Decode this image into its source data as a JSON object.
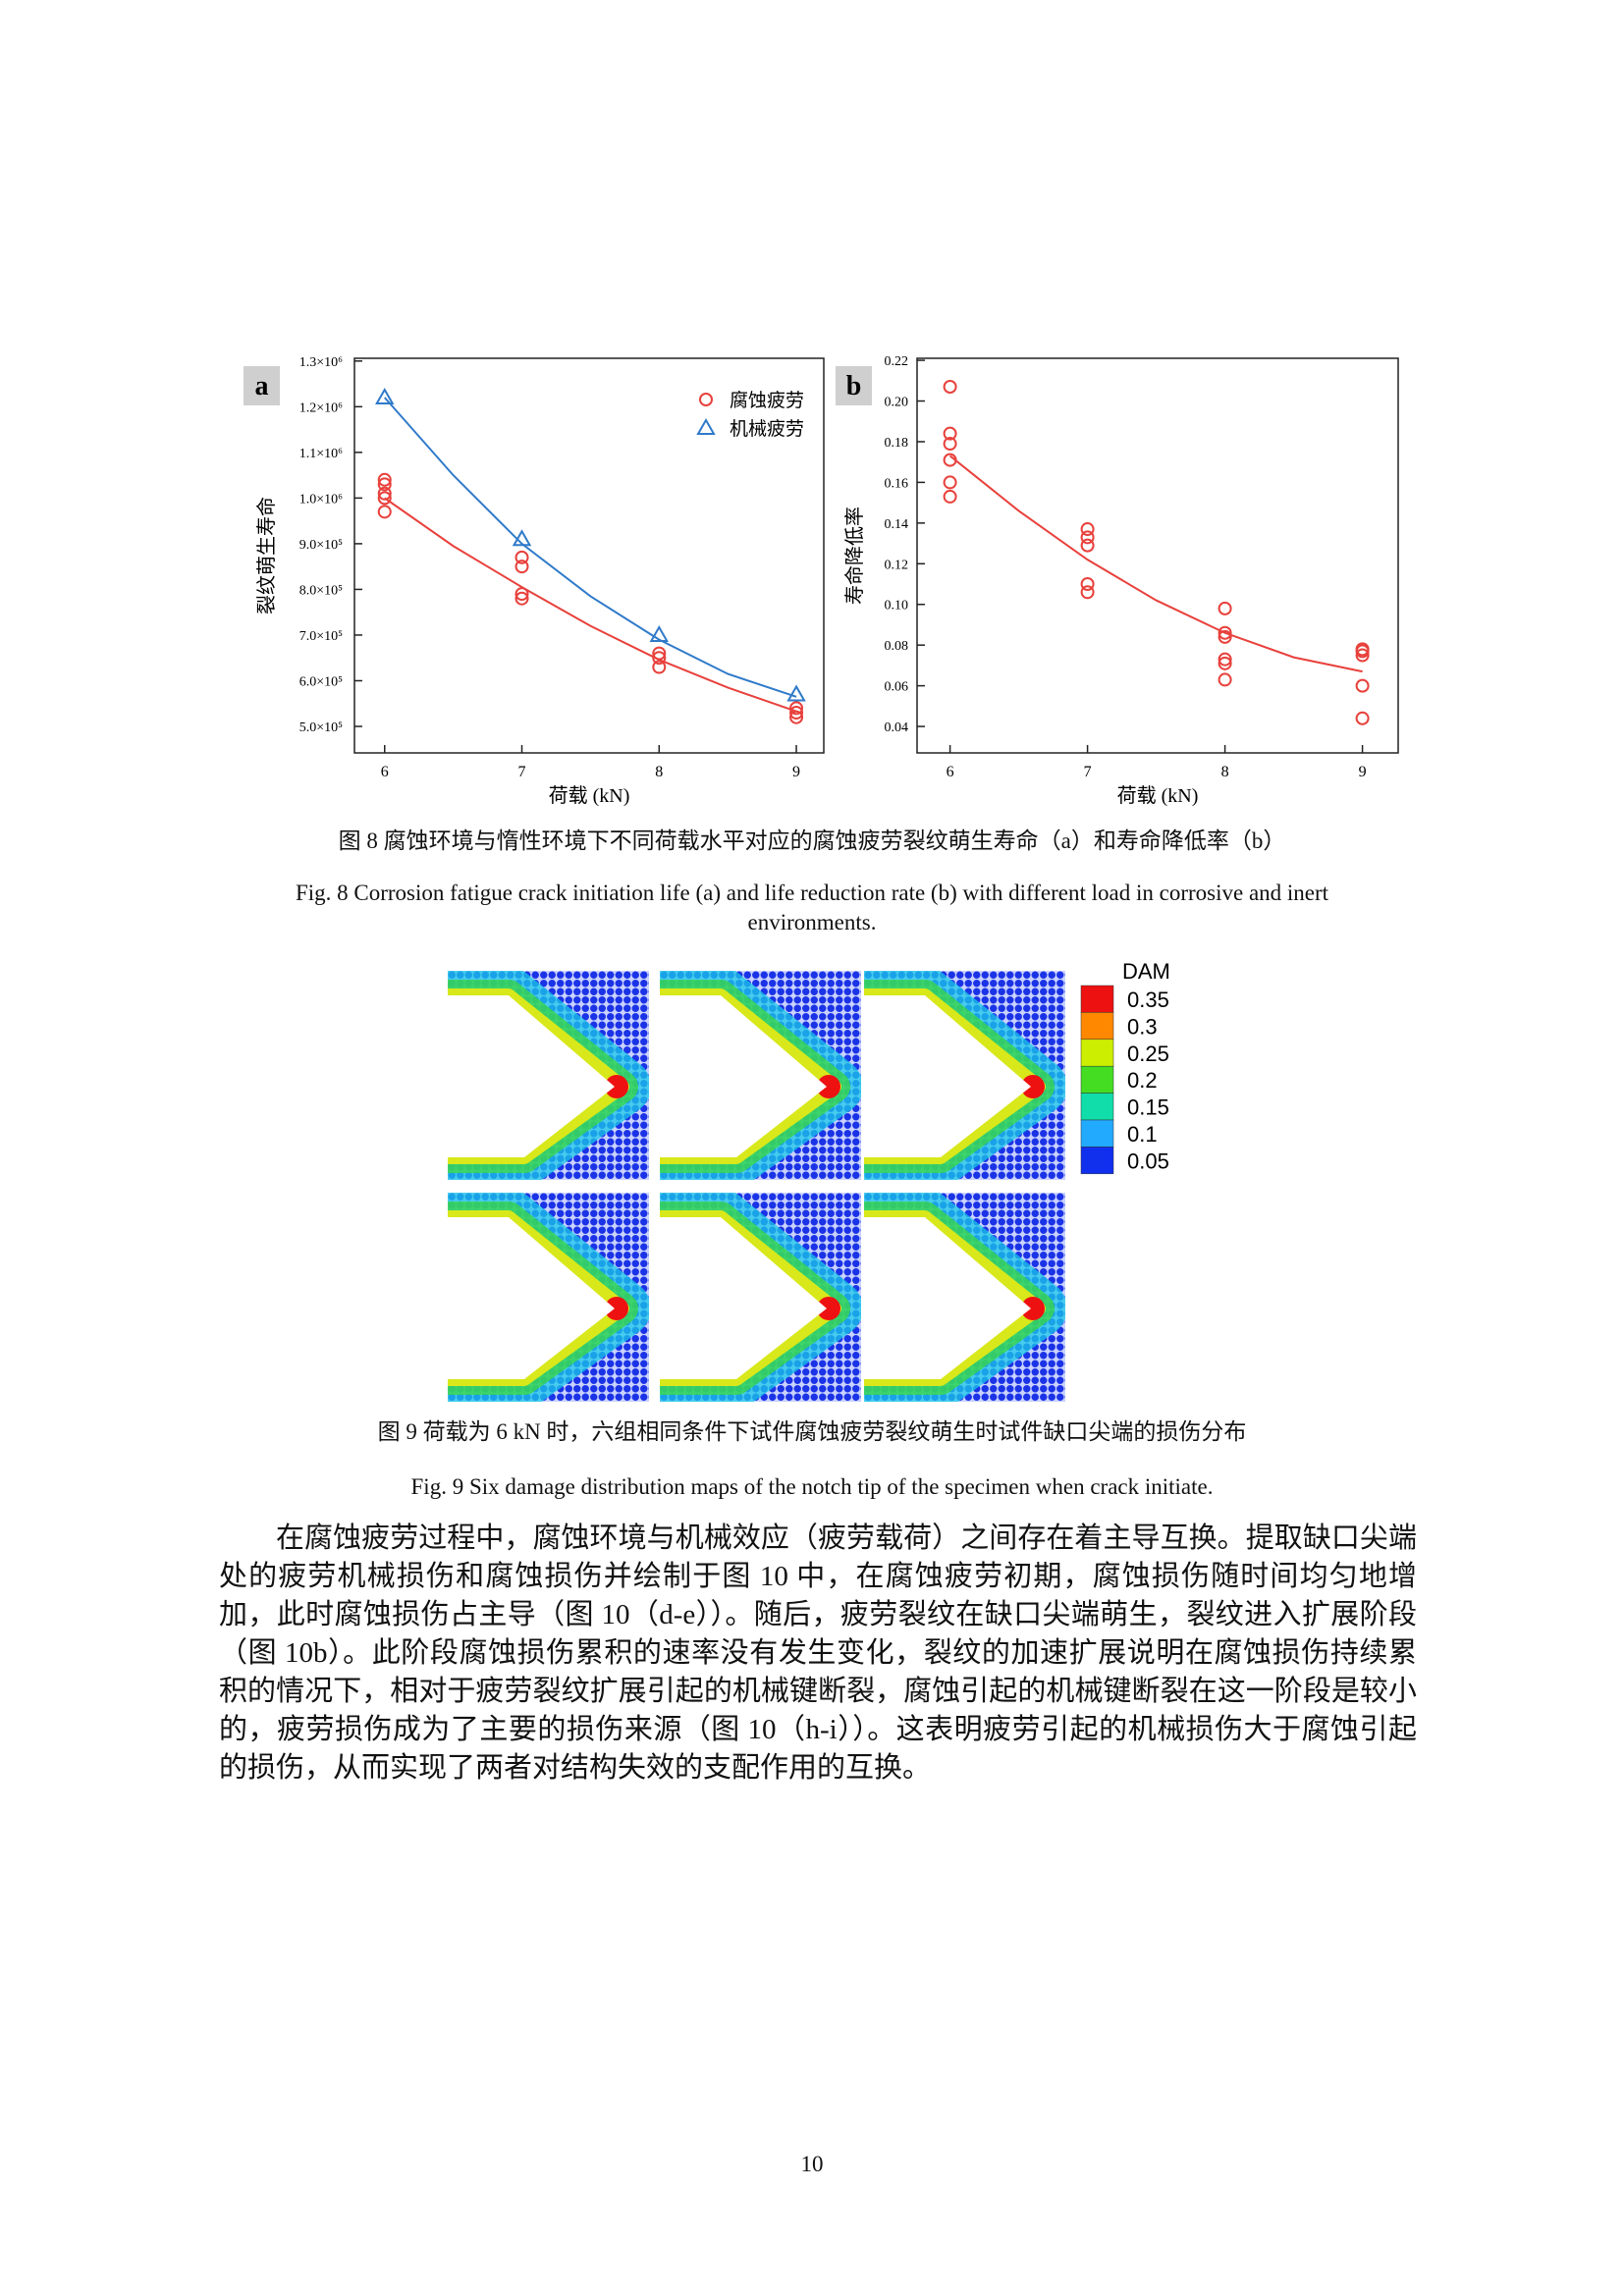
{
  "chart_data": [
    {
      "type": "scatter",
      "panel_label": "a",
      "xlabel": "荷载 (kN)",
      "ylabel": "裂纹萌生寿命",
      "xlim": [
        5.78,
        9.2
      ],
      "ylim": [
        442000,
        1306000
      ],
      "xticks": [
        6,
        7,
        8,
        9
      ],
      "yticks": [
        {
          "value": 500000,
          "label": "5.0×10⁵"
        },
        {
          "value": 600000,
          "label": "6.0×10⁵"
        },
        {
          "value": 700000,
          "label": "7.0×10⁵"
        },
        {
          "value": 800000,
          "label": "8.0×10⁵"
        },
        {
          "value": 900000,
          "label": "9.0×10⁵"
        },
        {
          "value": 1000000,
          "label": "1.0×10⁶"
        },
        {
          "value": 1100000,
          "label": "1.1×10⁶"
        },
        {
          "value": 1200000,
          "label": "1.2×10⁶"
        },
        {
          "value": 1300000,
          "label": "1.3×10⁶"
        }
      ],
      "grid": false,
      "legend": "upper right",
      "series": [
        {
          "name": "腐蚀疲劳",
          "color": "#e8413c",
          "marker": "circle",
          "x": [
            6,
            6,
            6,
            6,
            6,
            7,
            7,
            7,
            7,
            8,
            8,
            8,
            9,
            9,
            9
          ],
          "values": [
            1040000,
            1030000,
            1010000,
            1000000,
            970000,
            870000,
            850000,
            790000,
            780000,
            660000,
            650000,
            630000,
            540000,
            530000,
            520000
          ]
        },
        {
          "name": "机械疲劳",
          "color": "#2f7ac9",
          "marker": "triangle",
          "x": [
            6,
            7,
            8,
            9
          ],
          "values": [
            1220000,
            910000,
            700000,
            570000
          ]
        }
      ],
      "fits": [
        {
          "color": "#e8413c",
          "x": [
            6,
            6.5,
            7,
            7.5,
            8,
            8.5,
            9
          ],
          "values": [
            1000000,
            895000,
            805000,
            720000,
            646000,
            585000,
            533000
          ]
        },
        {
          "color": "#2f7ac9",
          "x": [
            6,
            6.5,
            7,
            7.5,
            8,
            8.5,
            9
          ],
          "values": [
            1220000,
            1050000,
            900000,
            785000,
            690000,
            615000,
            565000
          ]
        }
      ]
    },
    {
      "type": "scatter",
      "panel_label": "b",
      "xlabel": "荷载 (kN)",
      "ylabel": "寿命降低率",
      "xlim": [
        5.76,
        9.26
      ],
      "ylim": [
        0.027,
        0.221
      ],
      "xticks": [
        6,
        7,
        8,
        9
      ],
      "yticks": [
        0.04,
        0.06,
        0.08,
        {
          "value": 0.1,
          "label": "0.10"
        },
        0.12,
        0.14,
        0.16,
        0.18,
        {
          "value": 0.2,
          "label": "0.20"
        },
        0.22
      ],
      "grid": false,
      "series": [
        {
          "color": "#e8413c",
          "marker": "circle",
          "x": [
            6,
            6,
            6,
            6,
            6,
            6,
            7,
            7,
            7,
            7,
            7,
            8,
            8,
            8,
            8,
            8,
            8,
            9,
            9,
            9,
            9,
            9
          ],
          "values": [
            0.207,
            0.184,
            0.179,
            0.171,
            0.16,
            0.153,
            0.137,
            0.133,
            0.129,
            0.11,
            0.106,
            0.098,
            0.086,
            0.084,
            0.073,
            0.071,
            0.063,
            0.078,
            0.077,
            0.075,
            0.06,
            0.044
          ]
        }
      ],
      "fits": [
        {
          "color": "#e8413c",
          "x": [
            6,
            6.5,
            7,
            7.5,
            8,
            8.5,
            9
          ],
          "values": [
            0.173,
            0.146,
            0.122,
            0.102,
            0.086,
            0.074,
            0.067
          ]
        }
      ]
    }
  ],
  "figure8": {
    "caption_zh": "图 8  腐蚀环境与惰性环境下不同荷载水平对应的腐蚀疲劳裂纹萌生寿命（a）和寿命降低率（b）",
    "caption_en": "Fig. 8 Corrosion fatigue crack initiation life (a) and life reduction rate (b) with different load in corrosive and inert environments."
  },
  "figure9": {
    "legend_title": "DAM",
    "legend_levels": [
      0.35,
      0.3,
      0.25,
      0.2,
      0.15,
      0.1,
      0.05
    ],
    "legend_colors": [
      "#ee1111",
      "#ff8800",
      "#ccee00",
      "#44dd22",
      "#11ddaa",
      "#22aaff",
      "#1030ee"
    ],
    "caption_zh": "图 9  荷载为 6 kN 时，六组相同条件下试件腐蚀疲劳裂纹萌生时试件缺口尖端的损伤分布",
    "caption_en": "Fig. 9 Six damage distribution maps of the notch tip of the specimen when crack initiate."
  },
  "body": {
    "paragraph": "在腐蚀疲劳过程中，腐蚀环境与机械效应（疲劳载荷）之间存在着主导互换。提取缺口尖端处的疲劳机械损伤和腐蚀损伤并绘制于图 10 中，在腐蚀疲劳初期，腐蚀损伤随时间均匀地增加，此时腐蚀损伤占主导（图 10（d-e））。随后，疲劳裂纹在缺口尖端萌生，裂纹进入扩展阶段（图 10b）。此阶段腐蚀损伤累积的速率没有发生变化，裂纹的加速扩展说明在腐蚀损伤持续累积的情况下，相对于疲劳裂纹扩展引起的机械键断裂，腐蚀引起的机械键断裂在这一阶段是较小的，疲劳损伤成为了主要的损伤来源（图 10（h-i））。这表明疲劳引起的机械损伤大于腐蚀引起的损伤，从而实现了两者对结构失效的支配作用的互换。"
  },
  "page_number": "10"
}
